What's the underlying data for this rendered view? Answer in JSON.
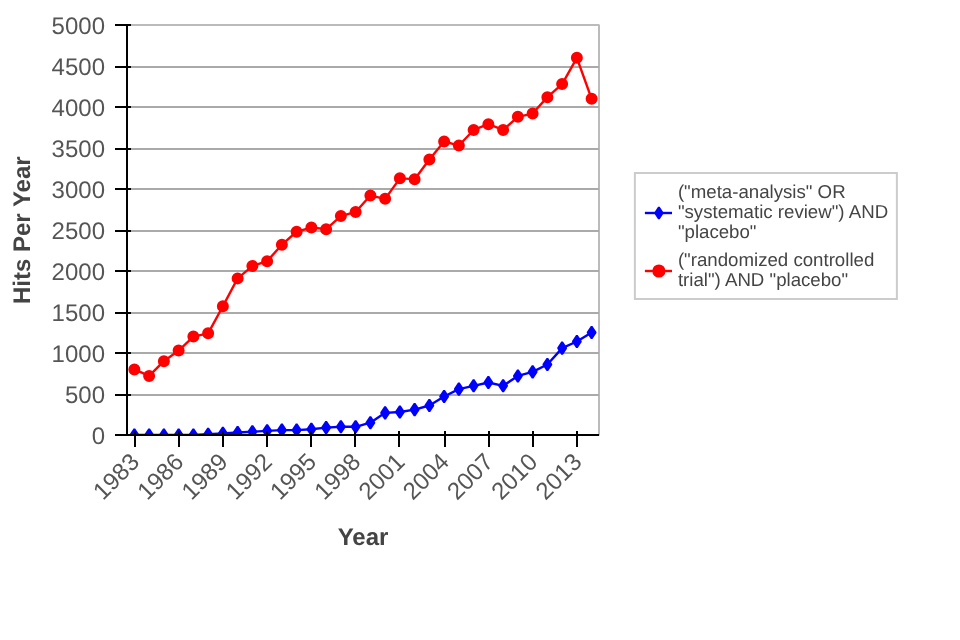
{
  "chart_data": {
    "type": "line",
    "xlabel": "Year",
    "ylabel": "Hits Per Year",
    "categories": [
      "1983",
      null,
      null,
      "1986",
      null,
      null,
      "1989",
      null,
      null,
      "1992",
      null,
      null,
      "1995",
      null,
      null,
      "1998",
      null,
      null,
      "2001",
      null,
      null,
      "2004",
      null,
      null,
      "2007",
      null,
      null,
      "2010",
      null,
      null,
      "2013",
      null
    ],
    "series": [
      {
        "name": "(\"meta-analysis\" OR \"systematic review\") AND \"placebo\"",
        "color": "#0000ff",
        "marker": "diamond",
        "values": [
          0,
          0,
          0,
          0,
          0,
          10,
          20,
          30,
          40,
          50,
          60,
          60,
          70,
          90,
          100,
          100,
          150,
          270,
          280,
          310,
          360,
          470,
          560,
          600,
          640,
          600,
          720,
          770,
          860,
          1060,
          1140,
          1250
        ]
      },
      {
        "name": "(\"randomized controlled trial\") AND \"placebo\"",
        "color": "#ff0000",
        "marker": "circle",
        "values": [
          800,
          720,
          900,
          1030,
          1200,
          1240,
          1570,
          1910,
          2060,
          2120,
          2320,
          2480,
          2530,
          2510,
          2670,
          2720,
          2920,
          2880,
          3130,
          3120,
          3360,
          3580,
          3530,
          3720,
          3790,
          3720,
          3880,
          3920,
          4120,
          4280,
          4600,
          4100
        ]
      }
    ],
    "ylim": [
      0,
      5000
    ],
    "yticks": [
      0,
      500,
      1000,
      1500,
      2000,
      2500,
      3000,
      3500,
      4000,
      4500,
      5000
    ],
    "grid": "y",
    "legend": "right"
  }
}
